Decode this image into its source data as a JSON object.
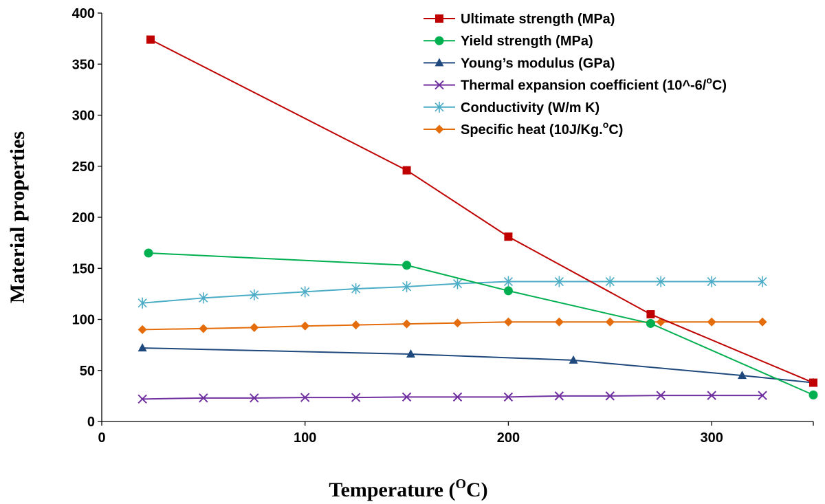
{
  "chart_data": {
    "type": "line",
    "title": "",
    "xlabel_prefix": "Temperature (",
    "xlabel_unit_sup": "O",
    "xlabel_suffix": "C)",
    "ylabel": "Material properties",
    "xlim": [
      0,
      350
    ],
    "ylim": [
      0,
      400
    ],
    "xticks": [
      0,
      100,
      200,
      300
    ],
    "yticks": [
      0,
      50,
      100,
      150,
      200,
      250,
      300,
      350,
      400
    ],
    "grid": false,
    "legend_position": "top-right",
    "series": [
      {
        "name": "Ultimate strength (MPa)",
        "color": "#c00000",
        "marker": "square",
        "x": [
          24,
          150,
          200,
          270,
          350
        ],
        "y": [
          374,
          246,
          181,
          105,
          38
        ]
      },
      {
        "name": "Yield strength (MPa)",
        "color": "#00b050",
        "marker": "circle",
        "x": [
          23,
          150,
          200,
          270,
          350
        ],
        "y": [
          165,
          153,
          128,
          96,
          26
        ]
      },
      {
        "name": "Young’s modulus (GPa)",
        "color": "#1f497d",
        "marker": "triangle",
        "x": [
          20,
          152,
          232,
          315,
          350
        ],
        "y": [
          72,
          66,
          60,
          45,
          38
        ]
      },
      {
        "name": "Thermal expansion coefficient  (10^-6/°C)",
        "legend_parts": [
          "Thermal expansion coefficient  (10^-6/",
          "o",
          "C)"
        ],
        "color": "#7030a0",
        "marker": "x",
        "x": [
          20,
          50,
          75,
          100,
          125,
          150,
          175,
          200,
          225,
          250,
          275,
          300,
          325
        ],
        "y": [
          22,
          23,
          23,
          23.5,
          23.5,
          24,
          24,
          24,
          25,
          25,
          25.5,
          25.5,
          25.5
        ]
      },
      {
        "name": "Conductivity (W/m  K)",
        "color": "#4bacc6",
        "marker": "asterisk",
        "x": [
          20,
          50,
          75,
          100,
          125,
          150,
          175,
          200,
          225,
          250,
          275,
          300,
          325
        ],
        "y": [
          116,
          121,
          124,
          127,
          130,
          132,
          135,
          137,
          137,
          137,
          137,
          137,
          137
        ]
      },
      {
        "name": "Specific heat (10J/Kg.°C)",
        "legend_parts": [
          "Specific heat (10J/Kg.",
          "o",
          "C)"
        ],
        "color": "#e46c0a",
        "marker": "diamond",
        "x": [
          20,
          50,
          75,
          100,
          125,
          150,
          175,
          200,
          225,
          250,
          275,
          300,
          325
        ],
        "y": [
          90,
          91,
          92,
          93.5,
          94.5,
          95.5,
          96.5,
          97.5,
          97.5,
          97.5,
          97.5,
          97.5,
          97.5
        ]
      }
    ]
  }
}
